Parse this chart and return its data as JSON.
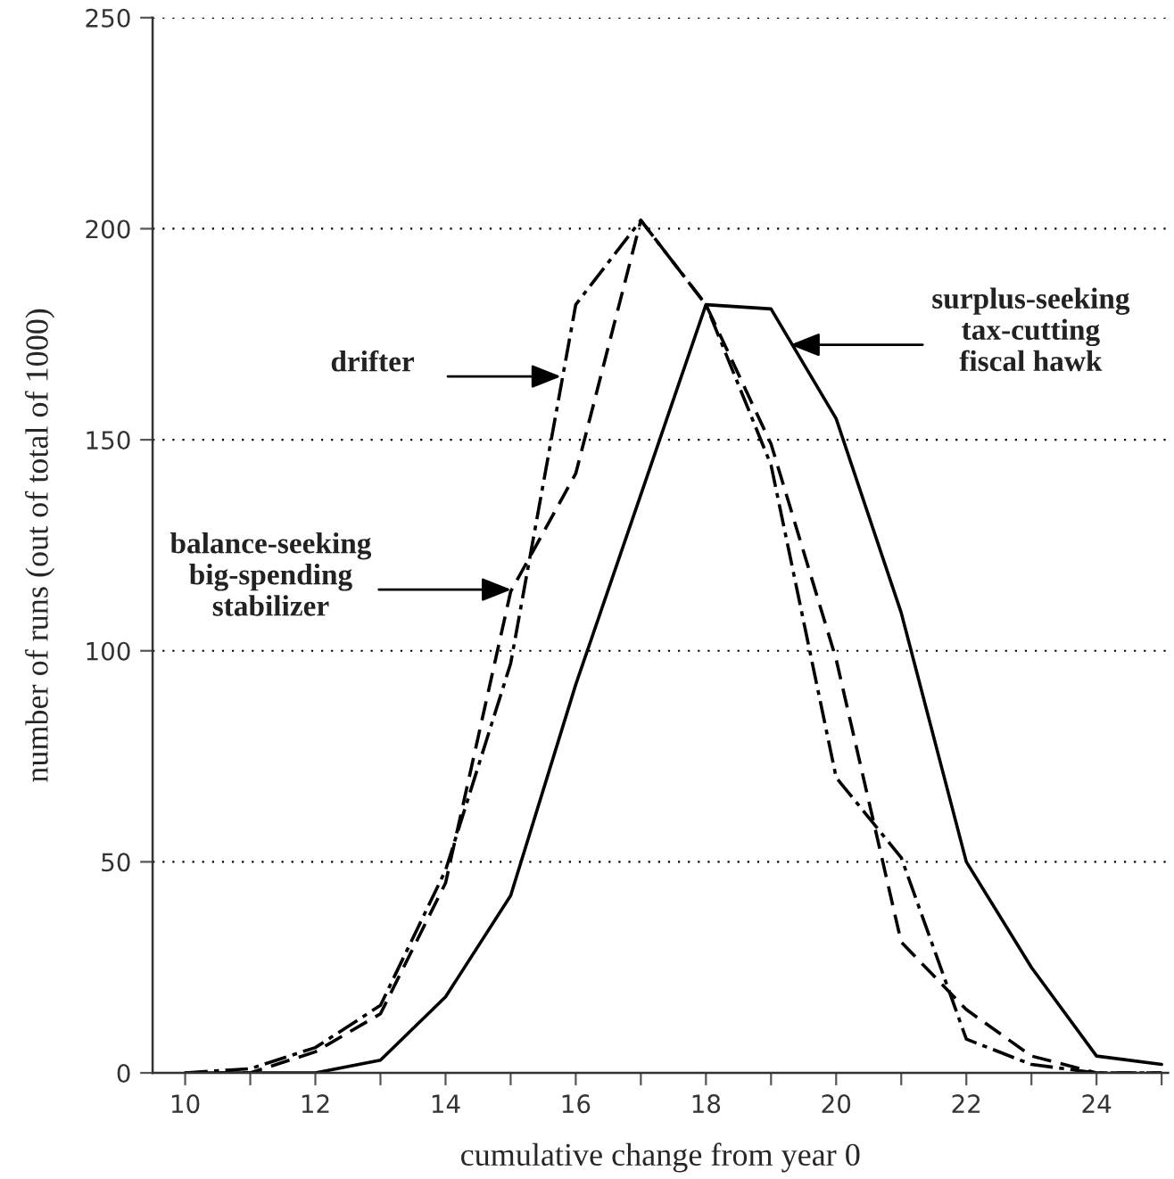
{
  "chart_data": {
    "type": "line",
    "xlabel": "cumulative change from year 0",
    "ylabel": "number of runs (out of total of 1000)",
    "x": [
      10,
      11,
      12,
      13,
      14,
      15,
      16,
      17,
      18,
      19,
      20,
      21,
      22,
      23,
      24,
      25
    ],
    "series": [
      {
        "color": "#000000",
        "line_style": "solid",
        "values": [
          0,
          0,
          0,
          3,
          18,
          42,
          92,
          137,
          182,
          181,
          155,
          109,
          50,
          25,
          4,
          2
        ]
      },
      {
        "color": "#000000",
        "line_style": "dashed",
        "values": [
          0,
          0,
          5,
          14,
          45,
          114,
          142,
          202,
          182,
          149,
          98,
          31,
          15,
          4,
          0,
          0
        ]
      },
      {
        "color": "#000000",
        "line_style": "dashdot",
        "values": [
          0,
          1,
          6,
          16,
          48,
          97,
          182,
          202,
          182,
          144,
          70,
          51,
          8,
          2,
          0,
          0
        ]
      }
    ],
    "xlim": [
      9.5,
      25.1
    ],
    "xticks": [
      10,
      {
        "value": 11,
        "label": null
      },
      12,
      {
        "value": 13,
        "label": null
      },
      14,
      {
        "value": 15,
        "label": null
      },
      16,
      {
        "value": 17,
        "label": null
      },
      18,
      {
        "value": 19,
        "label": null
      },
      20,
      {
        "value": 21,
        "label": null
      },
      22,
      {
        "value": 23,
        "label": null
      },
      24,
      {
        "value": 25,
        "label": null
      }
    ],
    "ylim": [
      0,
      250
    ],
    "yticks": [
      0,
      50,
      100,
      150,
      200,
      250
    ],
    "grid": "y",
    "marker": "none",
    "annotations": [
      "drifter",
      "balance-seeking\nbig-spending\nstabilizer",
      "surplus-seeking\ntax-cutting\nfiscal hawk"
    ]
  }
}
